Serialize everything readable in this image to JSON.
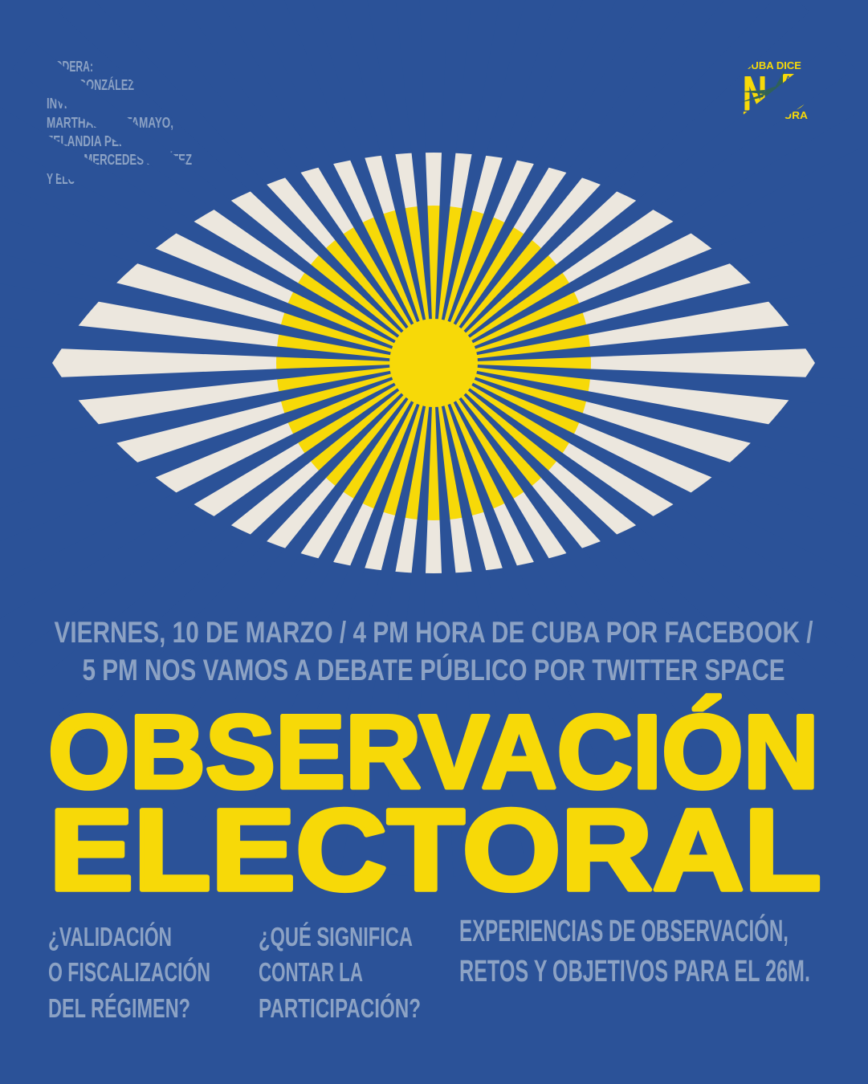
{
  "colors": {
    "background": "#2B5298",
    "yellow": "#F7D908",
    "cream": "#ECE7DE",
    "muted_blue": "#8CA2C4",
    "bird_teal": "#2F6158"
  },
  "credits": {
    "lines": [
      "MODERA:",
      "SAILY GONZÁLEZ",
      "INVITADOS:",
      "MARTHADELA TAMAYO,",
      "ZELANDIA PÉREZ,",
      "MARÍA MERCEDES BENÍTEZ",
      "Y ELOY VIERA"
    ]
  },
  "logo": {
    "line_top": "CUBA DICE",
    "letter_n": "N",
    "badge": "A LA",
    "line_bottom": "DICTADURA"
  },
  "eye": {
    "ray_count": 44
  },
  "schedule": {
    "line1": "VIERNES, 10 DE MARZO / 4 PM HORA DE CUBA POR FACEBOOK /",
    "line2": "5 PM NOS VAMOS A DEBATE PÚBLICO POR TWITTER SPACE"
  },
  "title": {
    "line1": "OBSERVACIÓN",
    "line2": "ELECTORAL"
  },
  "topics": [
    {
      "lines": [
        "¿VALIDACIÓN",
        "O FISCALIZACIÓN",
        "DEL RÉGIMEN?"
      ]
    },
    {
      "lines": [
        "¿QUÉ SIGNIFICA",
        "CONTAR LA",
        "PARTICIPACIÓN?"
      ]
    },
    {
      "lines": [
        "EXPERIENCIAS DE OBSERVACIÓN,",
        "RETOS Y OBJETIVOS PARA EL 26M."
      ]
    }
  ]
}
